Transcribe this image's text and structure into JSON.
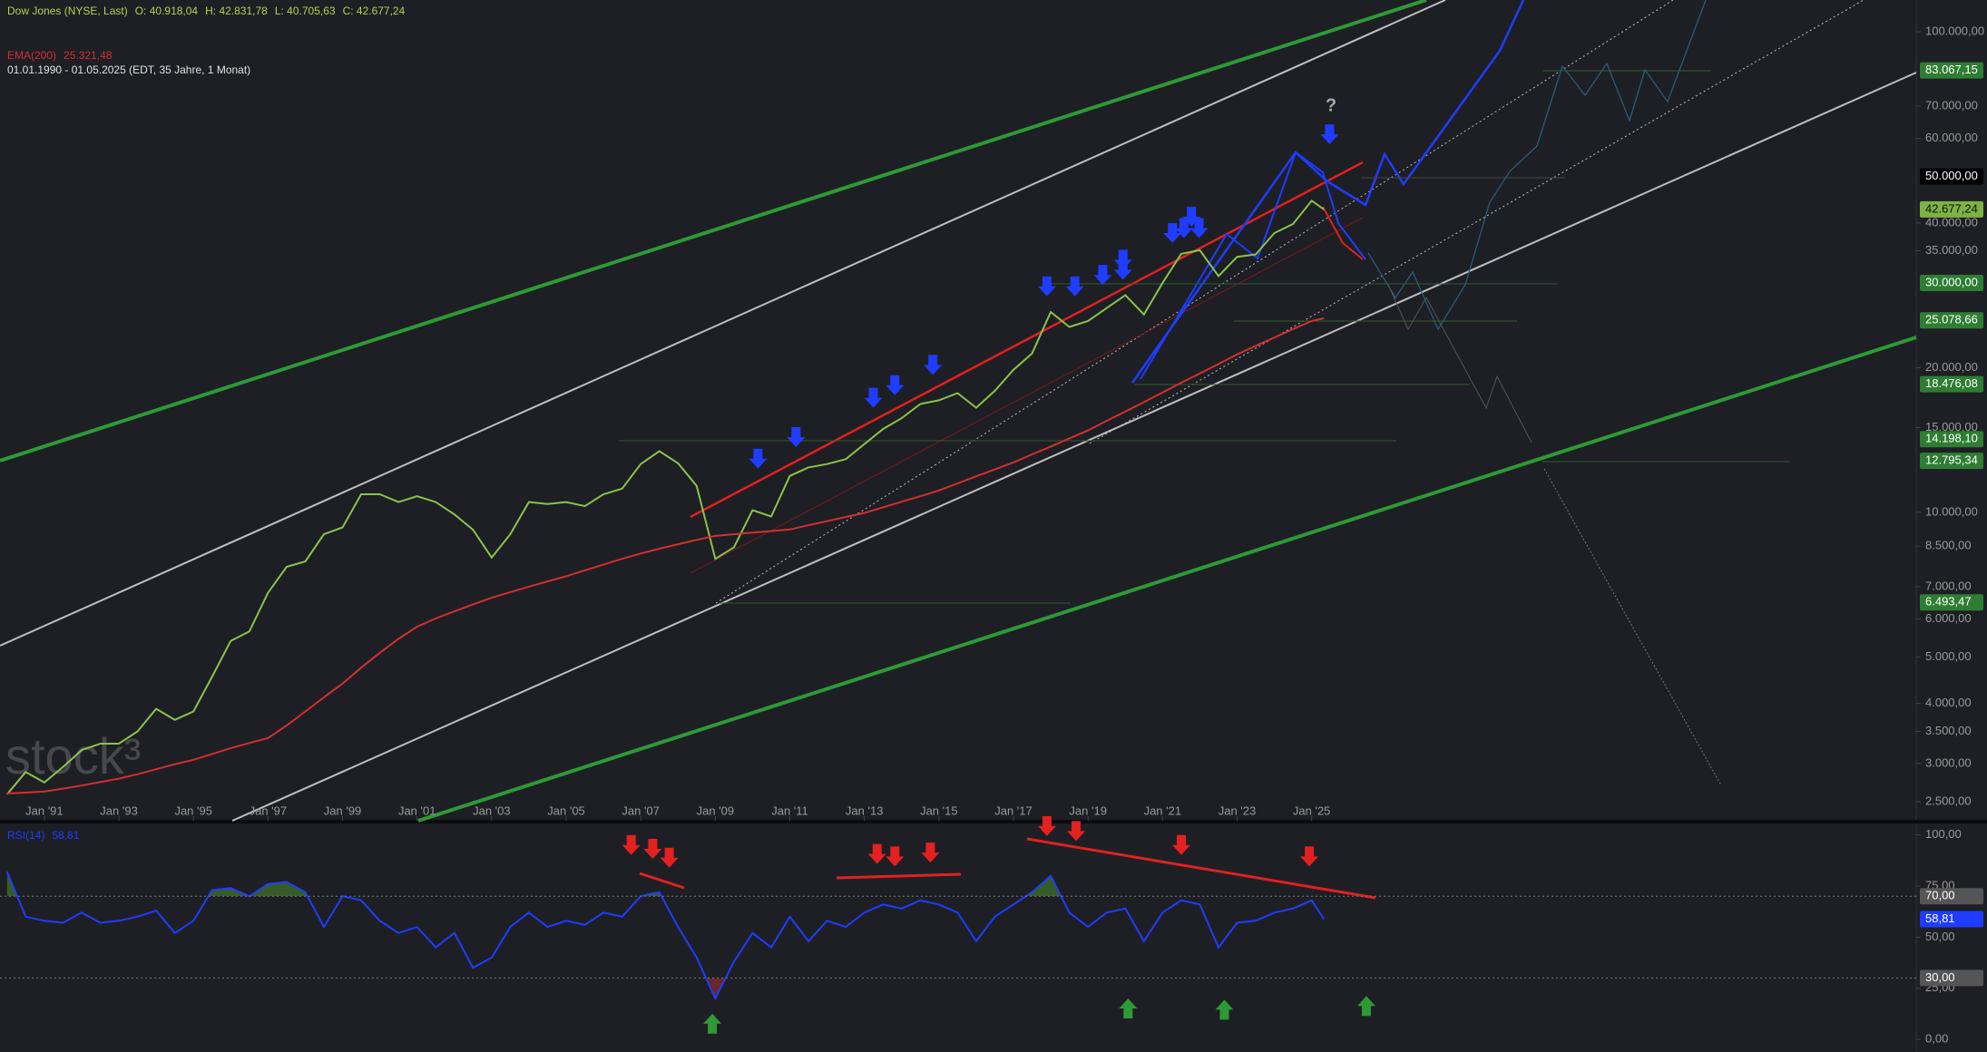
{
  "chart_data": [
    {
      "type": "line",
      "log_scale": true,
      "ohlc": [
        "O: 40.918,04",
        "H: 42.831,78",
        "L: 40.705,63",
        "C: 42.677,24"
      ],
      "subtitle": "01.01.1990 - 01.05.2025  (EDT, 35 Jahre, 1 Monat)",
      "watermark": "stock³",
      "annotation": "?",
      "x": [
        1990,
        1990.5,
        1991,
        1991.5,
        1992,
        1992.5,
        1993,
        1993.5,
        1994,
        1994.5,
        1995,
        1995.5,
        1996,
        1996.5,
        1997,
        1997.5,
        1998,
        1998.5,
        1999,
        1999.5,
        2000,
        2000.5,
        2001,
        2001.5,
        2002,
        2002.5,
        2003,
        2003.5,
        2004,
        2004.5,
        2005,
        2005.5,
        2006,
        2006.5,
        2007,
        2007.5,
        2008,
        2008.5,
        2009,
        2009.5,
        2010,
        2010.5,
        2011,
        2011.5,
        2012,
        2012.5,
        2013,
        2013.5,
        2014,
        2014.5,
        2015,
        2015.5,
        2016,
        2016.5,
        2017,
        2017.5,
        2018,
        2018.5,
        2019,
        2019.5,
        2020,
        2020.5,
        2021,
        2021.5,
        2022,
        2022.5,
        2023,
        2023.5,
        2024,
        2024.5,
        2025,
        2025.33
      ],
      "xlim": [
        1989.81,
        2041.22
      ],
      "xticks": [
        {
          "value": 1991,
          "label": "Jan '91"
        },
        {
          "value": 1993,
          "label": "Jan '93"
        },
        {
          "value": 1995,
          "label": "Jan '95"
        },
        {
          "value": 1997,
          "label": "Jan '97"
        },
        {
          "value": 1999,
          "label": "Jan '99"
        },
        {
          "value": 2001,
          "label": "Jan '01"
        },
        {
          "value": 2003,
          "label": "Jan '03"
        },
        {
          "value": 2005,
          "label": "Jan '05"
        },
        {
          "value": 2007,
          "label": "Jan '07"
        },
        {
          "value": 2009,
          "label": "Jan '09"
        },
        {
          "value": 2011,
          "label": "Jan '11"
        },
        {
          "value": 2013,
          "label": "Jan '13"
        },
        {
          "value": 2015,
          "label": "Jan '15"
        },
        {
          "value": 2017,
          "label": "Jan '17"
        },
        {
          "value": 2019,
          "label": "Jan '19"
        },
        {
          "value": 2021,
          "label": "Jan '21"
        },
        {
          "value": 2023,
          "label": "Jan '23"
        },
        {
          "value": 2025,
          "label": "Jan '25"
        }
      ],
      "ylim": [
        2281,
        116400
      ],
      "yticks": [
        {
          "value": 100000,
          "label": "100.000,00"
        },
        {
          "value": 70000,
          "label": "70.000,00"
        },
        {
          "value": 60000,
          "label": "60.000,00"
        },
        {
          "value": 40000,
          "label": "40.000,00"
        },
        {
          "value": 35000,
          "label": "35.000,00"
        },
        {
          "value": 20000,
          "label": "20.000,00"
        },
        {
          "value": 15000,
          "label": "15.000,00"
        },
        {
          "value": 10000,
          "label": "10.000,00"
        },
        {
          "value": 8500,
          "label": "8.500,00"
        },
        {
          "value": 7000,
          "label": "7.000,00"
        },
        {
          "value": 6000,
          "label": "6.000,00"
        },
        {
          "value": 5000,
          "label": "5.000,00"
        },
        {
          "value": 4000,
          "label": "4.000,00"
        },
        {
          "value": 3500,
          "label": "3.500,00"
        },
        {
          "value": 3000,
          "label": "3.000,00"
        },
        {
          "value": 2500,
          "label": "2.500,00"
        }
      ],
      "series": [
        {
          "name": "Dow Jones (NYSE, Last)",
          "color": "#8bc34a",
          "values": [
            2590,
            2880,
            2740,
            2950,
            3200,
            3300,
            3300,
            3500,
            3900,
            3700,
            3850,
            4550,
            5400,
            5650,
            6800,
            7700,
            7900,
            9000,
            9300,
            10900,
            10900,
            10500,
            10800,
            10500,
            9900,
            9200,
            8050,
            9000,
            10500,
            10400,
            10500,
            10300,
            10900,
            11200,
            12600,
            13400,
            12650,
            11350,
            8000,
            8450,
            10100,
            9800,
            11900,
            12400,
            12600,
            12900,
            13860,
            14900,
            15700,
            16800,
            17100,
            17700,
            16500,
            17900,
            19800,
            21400,
            26100,
            24300,
            25000,
            26600,
            28300,
            25800,
            30000,
            34500,
            35100,
            31000,
            34000,
            34400,
            38100,
            39800,
            44500,
            42677.24
          ]
        },
        {
          "name": "EMA(200)",
          "last_label": "25.321,48",
          "color": "#d32f2f",
          "values": [
            2600,
            2610,
            2625,
            2660,
            2700,
            2745,
            2790,
            2850,
            2920,
            2990,
            3055,
            3140,
            3230,
            3310,
            3390,
            3600,
            3850,
            4120,
            4400,
            4750,
            5100,
            5450,
            5780,
            6010,
            6220,
            6430,
            6640,
            6820,
            7000,
            7180,
            7360,
            7570,
            7780,
            8000,
            8210,
            8400,
            8580,
            8760,
            8930,
            9000,
            9070,
            9140,
            9210,
            9400,
            9580,
            9780,
            9970,
            10240,
            10520,
            10800,
            11100,
            11480,
            11880,
            12280,
            12700,
            13200,
            13700,
            14250,
            14800,
            15500,
            16200,
            16950,
            17750,
            18600,
            19450,
            20350,
            21300,
            22200,
            23100,
            24050,
            25000,
            25321.48
          ]
        }
      ],
      "price_levels": [
        {
          "value": 83067.15,
          "label": "83.067,15",
          "color": "#2e7d32",
          "text_color": "#ffffff"
        },
        {
          "value": 50000,
          "label": "50.000,00",
          "color": "#000000",
          "text_color": "#ffffff"
        },
        {
          "value": 42677.24,
          "label": "42.677,24",
          "color": "#7cb342",
          "text_color": "#111111"
        },
        {
          "value": 30000,
          "label": "30.000,00",
          "color": "#2e7d32",
          "text_color": "#ffffff"
        },
        {
          "value": 25078.66,
          "label": "25.078,66",
          "color": "#2e7d32",
          "text_color": "#ffffff"
        },
        {
          "value": 18476.08,
          "label": "18.476,08",
          "color": "#2e7d32",
          "text_color": "#ffffff"
        },
        {
          "value": 14198.1,
          "label": "14.198,10",
          "color": "#2e7d32",
          "text_color": "#ffffff"
        },
        {
          "value": 12795.34,
          "label": "12.795,34",
          "color": "#2e7d32",
          "text_color": "#ffffff"
        },
        {
          "value": 6493.47,
          "label": "6.493,47",
          "color": "#2e7d32",
          "text_color": "#ffffff"
        }
      ]
    },
    {
      "type": "line",
      "ylim": [
        -6.2,
        105.6
      ],
      "yticks": [
        {
          "value": 100,
          "label": "100,00"
        },
        {
          "value": 75,
          "label": "75,00"
        },
        {
          "value": 50,
          "label": "50,00"
        },
        {
          "value": 25,
          "label": "25,00"
        },
        {
          "value": 0,
          "label": "0,00"
        }
      ],
      "series": [
        {
          "name": "RSI(14)",
          "last_label": "58,81",
          "color": "#1f3cff",
          "values": [
            82,
            60,
            58,
            57,
            62,
            57,
            58,
            60,
            63,
            52,
            58,
            73,
            74,
            70,
            76,
            77,
            72,
            55,
            70,
            68,
            58,
            52,
            55,
            45,
            52,
            35,
            40,
            55,
            62,
            55,
            58,
            56,
            62,
            60,
            70,
            72,
            55,
            40,
            20,
            38,
            52,
            45,
            60,
            48,
            58,
            55,
            62,
            66,
            64,
            68,
            66,
            62,
            48,
            60,
            66,
            72,
            80,
            62,
            55,
            62,
            64,
            48,
            62,
            68,
            66,
            45,
            57,
            58,
            62,
            64,
            68,
            58.81
          ]
        }
      ],
      "levels": [
        {
          "value": 70,
          "label": "70,00",
          "color": "#555555",
          "text_color": "#ffffff"
        },
        {
          "value": 58.81,
          "label": "58,81",
          "color": "#1f3cff",
          "text_color": "#ffffff"
        },
        {
          "value": 30,
          "label": "30,00",
          "color": "#555555",
          "text_color": "#ffffff"
        }
      ]
    }
  ]
}
